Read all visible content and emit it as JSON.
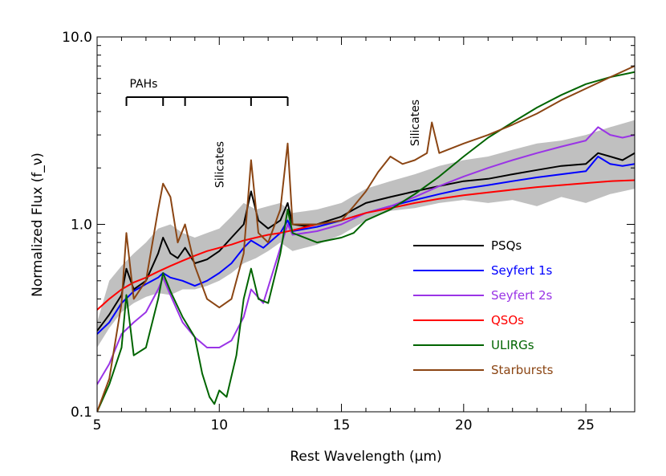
{
  "chart_data": {
    "type": "line",
    "xlabel": "Rest Wavelength (μm)",
    "ylabel": "Normalized Flux (f_ν)",
    "xlim": [
      5,
      27
    ],
    "ylim": [
      0.1,
      10.0
    ],
    "yscale": "log",
    "xticks": [
      5,
      10,
      15,
      20,
      25
    ],
    "yticks": [
      0.1,
      1.0,
      10.0
    ],
    "ytick_labels": [
      "0.1",
      "1.0",
      "10.0"
    ],
    "legend_position": "bottom-right",
    "annotations": {
      "pahs": {
        "label": "PAHs",
        "bracket_x": [
          6.2,
          7.7,
          8.6,
          11.3,
          12.8
        ]
      },
      "silicates_1": {
        "label": "Silicates",
        "x": 10.0
      },
      "silicates_2": {
        "label": "Silicates",
        "x": 18.0
      }
    },
    "band": {
      "color": "#c0c0c0",
      "x": [
        5,
        5.5,
        6,
        6.5,
        7,
        7.5,
        8,
        8.5,
        9,
        9.5,
        10,
        10.5,
        11,
        11.5,
        12,
        12.5,
        13,
        14,
        15,
        16,
        17,
        18,
        19,
        20,
        21,
        22,
        23,
        24,
        25,
        26,
        27
      ],
      "lower": [
        0.22,
        0.28,
        0.34,
        0.38,
        0.41,
        0.43,
        0.42,
        0.45,
        0.45,
        0.47,
        0.5,
        0.55,
        0.62,
        0.66,
        0.72,
        0.8,
        0.72,
        0.78,
        0.88,
        1.05,
        1.18,
        1.22,
        1.3,
        1.35,
        1.3,
        1.35,
        1.25,
        1.4,
        1.3,
        1.45,
        1.55
      ],
      "upper": [
        0.3,
        0.5,
        0.6,
        0.7,
        0.8,
        0.95,
        1.0,
        0.9,
        0.85,
        0.9,
        0.95,
        1.1,
        1.3,
        1.2,
        1.25,
        1.3,
        1.15,
        1.2,
        1.3,
        1.55,
        1.7,
        1.85,
        2.05,
        2.2,
        2.3,
        2.5,
        2.7,
        2.8,
        3.0,
        3.3,
        3.6
      ]
    },
    "series": [
      {
        "name": "PSQs",
        "color": "#000000",
        "x": [
          5,
          5.5,
          6,
          6.2,
          6.5,
          7,
          7.5,
          7.7,
          8,
          8.3,
          8.6,
          9,
          9.5,
          10,
          10.5,
          11,
          11.3,
          11.6,
          12,
          12.5,
          12.8,
          13,
          13.5,
          14,
          14.5,
          15,
          15.5,
          16,
          17,
          18,
          19,
          20,
          21,
          22,
          23,
          24,
          25,
          25.5,
          26,
          26.5,
          27
        ],
        "values": [
          0.27,
          0.33,
          0.42,
          0.58,
          0.45,
          0.5,
          0.7,
          0.85,
          0.7,
          0.66,
          0.75,
          0.62,
          0.65,
          0.72,
          0.85,
          1.0,
          1.5,
          1.05,
          0.95,
          1.05,
          1.3,
          1.0,
          0.98,
          1.0,
          1.05,
          1.1,
          1.2,
          1.3,
          1.4,
          1.5,
          1.6,
          1.7,
          1.75,
          1.85,
          1.95,
          2.05,
          2.1,
          2.4,
          2.3,
          2.2,
          2.4
        ]
      },
      {
        "name": "Seyfert 1s",
        "color": "#0000ff",
        "x": [
          5,
          5.5,
          6,
          6.5,
          7,
          7.5,
          7.7,
          8,
          8.5,
          9,
          9.5,
          10,
          10.5,
          11,
          11.3,
          11.8,
          12.5,
          12.8,
          13,
          14,
          15,
          16,
          17,
          18,
          19,
          20,
          21,
          22,
          23,
          24,
          25,
          25.5,
          26,
          26.5,
          27
        ],
        "values": [
          0.26,
          0.3,
          0.38,
          0.44,
          0.48,
          0.52,
          0.55,
          0.52,
          0.5,
          0.47,
          0.5,
          0.55,
          0.62,
          0.75,
          0.82,
          0.75,
          0.9,
          1.05,
          0.92,
          0.97,
          1.05,
          1.15,
          1.25,
          1.35,
          1.45,
          1.55,
          1.62,
          1.7,
          1.78,
          1.85,
          1.92,
          2.3,
          2.1,
          2.05,
          2.1
        ]
      },
      {
        "name": "Seyfert 2s",
        "color": "#9a34e6",
        "x": [
          5,
          5.5,
          6,
          6.5,
          7,
          7.5,
          7.7,
          8,
          8.5,
          9,
          9.5,
          10,
          10.5,
          11,
          11.3,
          11.8,
          12.5,
          12.8,
          13,
          14,
          15,
          16,
          17,
          18,
          19,
          20,
          21,
          22,
          23,
          24,
          25,
          25.5,
          26,
          26.5,
          27
        ],
        "values": [
          0.14,
          0.18,
          0.26,
          0.3,
          0.34,
          0.45,
          0.52,
          0.42,
          0.3,
          0.25,
          0.22,
          0.22,
          0.24,
          0.32,
          0.45,
          0.38,
          0.75,
          1.0,
          0.88,
          0.92,
          1.0,
          1.15,
          1.25,
          1.4,
          1.6,
          1.8,
          2.0,
          2.2,
          2.4,
          2.6,
          2.8,
          3.3,
          3.0,
          2.9,
          3.0
        ]
      },
      {
        "name": "QSOs",
        "color": "#ff0000",
        "x": [
          5,
          5.5,
          6,
          6.5,
          7,
          7.5,
          8,
          8.5,
          9,
          9.5,
          10,
          10.5,
          11,
          11.5,
          12,
          12.5,
          13,
          14,
          15,
          16,
          17,
          18,
          19,
          20,
          21,
          22,
          23,
          24,
          25,
          26,
          27
        ],
        "values": [
          0.35,
          0.4,
          0.45,
          0.49,
          0.52,
          0.56,
          0.6,
          0.64,
          0.68,
          0.72,
          0.75,
          0.78,
          0.82,
          0.85,
          0.88,
          0.9,
          0.93,
          1.0,
          1.05,
          1.15,
          1.22,
          1.3,
          1.37,
          1.43,
          1.48,
          1.53,
          1.58,
          1.62,
          1.66,
          1.7,
          1.72
        ]
      },
      {
        "name": "ULIRGs",
        "color": "#006400",
        "x": [
          5,
          5.5,
          6,
          6.2,
          6.5,
          7,
          7.5,
          7.7,
          8,
          8.5,
          9,
          9.3,
          9.6,
          9.8,
          10,
          10.3,
          10.7,
          11,
          11.3,
          11.6,
          12,
          12.5,
          12.8,
          13,
          14,
          15,
          15.5,
          16,
          17,
          18,
          19,
          20,
          21,
          22,
          23,
          24,
          25,
          26,
          27
        ],
        "values": [
          0.1,
          0.14,
          0.22,
          0.42,
          0.2,
          0.22,
          0.4,
          0.55,
          0.44,
          0.32,
          0.25,
          0.16,
          0.12,
          0.11,
          0.13,
          0.12,
          0.2,
          0.4,
          0.58,
          0.4,
          0.38,
          0.7,
          1.2,
          0.9,
          0.8,
          0.85,
          0.9,
          1.05,
          1.2,
          1.45,
          1.8,
          2.3,
          2.9,
          3.5,
          4.2,
          4.9,
          5.6,
          6.1,
          6.5
        ]
      },
      {
        "name": "Starbursts",
        "color": "#8b4513",
        "x": [
          5,
          5.5,
          6,
          6.2,
          6.5,
          7,
          7.5,
          7.7,
          8,
          8.3,
          8.6,
          9,
          9.5,
          10,
          10.5,
          11,
          11.3,
          11.6,
          12,
          12.5,
          12.8,
          13,
          14,
          15,
          15.5,
          16,
          16.5,
          17,
          17.5,
          18,
          18.5,
          18.7,
          19,
          20,
          21,
          22,
          23,
          24,
          25,
          26,
          27
        ],
        "values": [
          0.1,
          0.15,
          0.38,
          0.9,
          0.4,
          0.5,
          1.2,
          1.65,
          1.4,
          0.8,
          1.0,
          0.6,
          0.4,
          0.36,
          0.4,
          0.7,
          2.2,
          0.9,
          0.8,
          1.2,
          2.7,
          1.0,
          1.0,
          1.05,
          1.25,
          1.5,
          1.9,
          2.3,
          2.1,
          2.2,
          2.4,
          3.5,
          2.4,
          2.7,
          3.0,
          3.4,
          3.9,
          4.6,
          5.3,
          6.1,
          7.0
        ]
      }
    ]
  }
}
